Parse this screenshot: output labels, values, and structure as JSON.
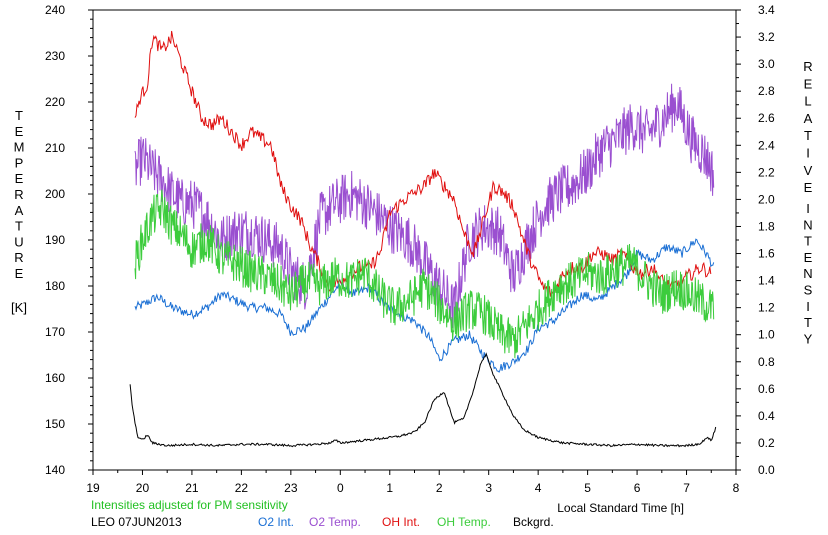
{
  "colors": {
    "o2_int": "#1a6fd4",
    "o2_temp": "#9a4fd0",
    "oh_int": "#e01010",
    "oh_temp": "#3ccc3c",
    "bckgrd": "#000000",
    "note": "#22c022"
  },
  "labels": {
    "left_axis_letters": [
      "T",
      "E",
      "M",
      "P",
      "E",
      "R",
      "A",
      "T",
      "U",
      "R",
      "E"
    ],
    "left_axis_unit": "[K]",
    "right_axis_word1": [
      "R",
      "E",
      "L",
      "A",
      "T",
      "I",
      "V",
      "E"
    ],
    "right_axis_word2": [
      "I",
      "N",
      "T",
      "E",
      "N",
      "S",
      "I",
      "T",
      "Y"
    ],
    "x_axis_label": "Local Standard Time [h]",
    "note": "Intensities adjusted for PM sensitivity",
    "station_date": "LEO 07JUN2013"
  },
  "chart_data": {
    "type": "line",
    "xlabel": "Local Standard Time [h]",
    "ylabel_left": "TEMPERATURE [K]",
    "ylabel_right": "RELATIVE INTENSITY",
    "xlim": [
      19,
      32
    ],
    "ylim_left": [
      140,
      240
    ],
    "ylim_right": [
      0.0,
      3.4
    ],
    "x_ticks": [
      19,
      20,
      21,
      22,
      23,
      24,
      25,
      26,
      27,
      28,
      29,
      30,
      31,
      32
    ],
    "x_tick_labels": [
      "19",
      "20",
      "21",
      "22",
      "23",
      "0",
      "1",
      "2",
      "3",
      "4",
      "5",
      "6",
      "7",
      "8"
    ],
    "y_left_ticks": [
      140,
      150,
      160,
      170,
      180,
      190,
      200,
      210,
      220,
      230,
      240
    ],
    "y_right_ticks": [
      "0.0",
      "0.2",
      "0.4",
      "0.6",
      "0.8",
      "1.0",
      "1.2",
      "1.4",
      "1.6",
      "1.8",
      "2.0",
      "2.2",
      "2.4",
      "2.6",
      "2.8",
      "3.0",
      "3.2",
      "3.4"
    ],
    "grid": false,
    "series": [
      {
        "name": "O2 Int.",
        "axis": "right",
        "x": [
          19.85,
          20.0,
          20.3,
          20.6,
          21.0,
          21.3,
          21.6,
          21.9,
          22.2,
          22.5,
          22.8,
          23.0,
          23.3,
          23.6,
          24.0,
          24.3,
          24.6,
          24.9,
          25.2,
          25.5,
          25.8,
          26.0,
          26.3,
          26.6,
          26.9,
          27.2,
          27.5,
          27.8,
          28.0,
          28.3,
          28.6,
          28.9,
          29.2,
          29.5,
          29.8,
          30.0,
          30.3,
          30.6,
          30.9,
          31.2,
          31.4,
          31.55
        ],
        "values": [
          1.2,
          1.22,
          1.28,
          1.2,
          1.15,
          1.2,
          1.3,
          1.25,
          1.2,
          1.2,
          1.15,
          1.02,
          1.05,
          1.2,
          1.38,
          1.3,
          1.35,
          1.22,
          1.15,
          1.1,
          0.98,
          0.82,
          0.95,
          1.0,
          0.85,
          0.75,
          0.8,
          0.9,
          1.05,
          1.1,
          1.2,
          1.3,
          1.25,
          1.35,
          1.45,
          1.6,
          1.55,
          1.65,
          1.6,
          1.7,
          1.6,
          1.5
        ]
      },
      {
        "name": "O2 Temp.",
        "axis": "left",
        "x": [
          19.85,
          20.0,
          20.2,
          20.4,
          20.6,
          20.8,
          21.0,
          21.3,
          21.6,
          21.9,
          22.2,
          22.5,
          22.8,
          23.0,
          23.3,
          23.6,
          23.9,
          24.2,
          24.5,
          24.8,
          25.1,
          25.4,
          25.7,
          26.0,
          26.3,
          26.6,
          26.9,
          27.2,
          27.5,
          27.8,
          28.1,
          28.4,
          28.7,
          29.0,
          29.3,
          29.6,
          29.9,
          30.2,
          30.5,
          30.8,
          31.1,
          31.4,
          31.55
        ],
        "values": [
          205,
          208,
          205,
          203,
          200,
          198,
          198,
          195,
          190,
          192,
          192,
          190,
          188,
          183,
          180,
          195,
          198,
          200,
          198,
          195,
          192,
          190,
          185,
          180,
          175,
          190,
          193,
          192,
          182,
          190,
          197,
          200,
          202,
          205,
          210,
          212,
          215,
          213,
          216,
          220,
          212,
          208,
          204
        ]
      },
      {
        "name": "OH Int.",
        "axis": "right",
        "x": [
          19.85,
          19.95,
          20.1,
          20.2,
          20.4,
          20.6,
          20.8,
          21.0,
          21.2,
          21.4,
          21.6,
          21.8,
          22.0,
          22.2,
          22.4,
          22.6,
          22.8,
          23.0,
          23.2,
          23.4,
          23.6,
          23.8,
          24.0,
          24.2,
          24.4,
          24.6,
          24.8,
          25.0,
          25.3,
          25.5,
          25.7,
          25.9,
          26.1,
          26.3,
          26.5,
          26.7,
          26.9,
          27.1,
          27.3,
          27.5,
          27.7,
          27.9,
          28.1,
          28.3,
          28.5,
          28.7,
          28.9,
          29.1,
          29.3,
          29.5,
          29.7,
          29.9,
          30.1,
          30.3,
          30.5,
          30.7,
          30.9,
          31.1,
          31.3,
          31.5
        ],
        "values": [
          2.6,
          2.75,
          2.85,
          3.2,
          3.1,
          3.2,
          3.0,
          2.8,
          2.6,
          2.55,
          2.6,
          2.5,
          2.4,
          2.5,
          2.45,
          2.4,
          2.1,
          1.95,
          1.85,
          1.65,
          1.5,
          1.35,
          1.4,
          1.45,
          1.5,
          1.5,
          1.6,
          1.9,
          2.0,
          2.05,
          2.1,
          2.2,
          2.1,
          2.0,
          1.75,
          1.6,
          1.85,
          2.1,
          2.05,
          1.95,
          1.7,
          1.5,
          1.35,
          1.3,
          1.45,
          1.5,
          1.5,
          1.6,
          1.6,
          1.55,
          1.6,
          1.5,
          1.45,
          1.5,
          1.4,
          1.35,
          1.4,
          1.45,
          1.5,
          1.45
        ]
      },
      {
        "name": "OH Temp.",
        "axis": "left",
        "x": [
          19.85,
          20.0,
          20.2,
          20.4,
          20.6,
          20.8,
          21.0,
          21.3,
          21.6,
          21.9,
          22.2,
          22.5,
          22.8,
          23.0,
          23.3,
          23.6,
          23.9,
          24.2,
          24.5,
          24.8,
          25.1,
          25.4,
          25.7,
          26.0,
          26.3,
          26.6,
          26.9,
          27.2,
          27.5,
          27.8,
          28.1,
          28.4,
          28.7,
          29.0,
          29.3,
          29.6,
          29.9,
          30.2,
          30.5,
          30.8,
          31.1,
          31.4,
          31.55
        ],
        "values": [
          185,
          190,
          195,
          197,
          193,
          191,
          188,
          190,
          186,
          185,
          183,
          182,
          180,
          178,
          181,
          180,
          182,
          181,
          183,
          178,
          175,
          177,
          180,
          176,
          172,
          175,
          174,
          170,
          168,
          172,
          176,
          180,
          181,
          183,
          182,
          184,
          185,
          181,
          178,
          180,
          178,
          176,
          175
        ]
      },
      {
        "name": "Bckgrd.",
        "axis": "right",
        "x": [
          19.75,
          19.8,
          19.9,
          20.0,
          20.05,
          20.1,
          20.2,
          20.5,
          21.0,
          21.5,
          22.0,
          22.5,
          23.0,
          23.5,
          23.8,
          23.9,
          24.0,
          24.5,
          25.0,
          25.2,
          25.5,
          25.7,
          25.9,
          26.1,
          26.3,
          26.5,
          26.7,
          26.85,
          26.95,
          27.1,
          27.3,
          27.5,
          27.7,
          28.0,
          28.5,
          29.0,
          29.5,
          30.0,
          30.5,
          31.0,
          31.2,
          31.3,
          31.4,
          31.5,
          31.6
        ],
        "values": [
          0.63,
          0.45,
          0.25,
          0.22,
          0.24,
          0.26,
          0.2,
          0.18,
          0.19,
          0.18,
          0.19,
          0.19,
          0.18,
          0.19,
          0.2,
          0.22,
          0.2,
          0.22,
          0.24,
          0.25,
          0.28,
          0.35,
          0.52,
          0.58,
          0.35,
          0.38,
          0.6,
          0.8,
          0.85,
          0.7,
          0.55,
          0.4,
          0.3,
          0.24,
          0.2,
          0.19,
          0.18,
          0.19,
          0.18,
          0.18,
          0.19,
          0.2,
          0.24,
          0.22,
          0.32
        ]
      }
    ]
  }
}
